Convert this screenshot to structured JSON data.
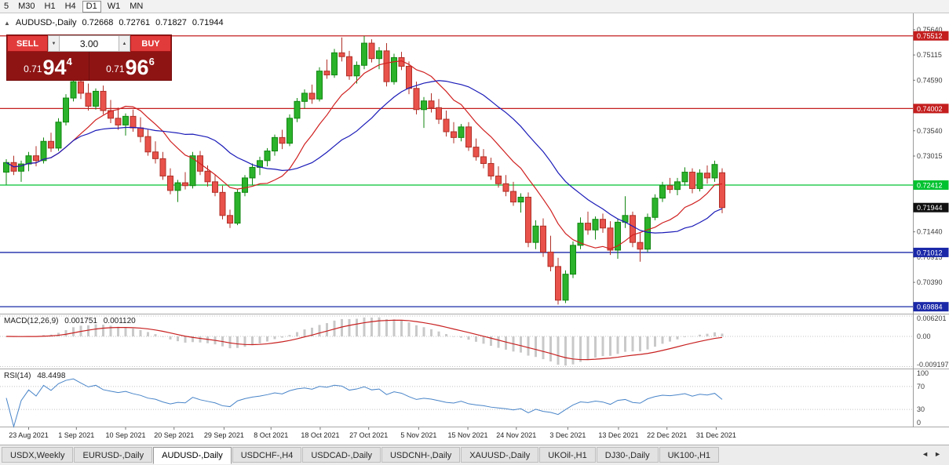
{
  "toolbar": {
    "timeframes": [
      "5",
      "M30",
      "H1",
      "H4",
      "D1",
      "W1",
      "MN"
    ],
    "selected": "D1"
  },
  "chart_header": {
    "collapse_icon": "▲",
    "symbol": "AUDUSD-,Daily",
    "open": "0.72668",
    "high": "0.72761",
    "low": "0.71827",
    "close": "0.71944"
  },
  "trade_panel": {
    "sell_label": "SELL",
    "buy_label": "BUY",
    "volume": "3.00",
    "spinner_down": "▼",
    "spinner_up": "▲",
    "sell_price": {
      "prefix": "0.71",
      "big": "94",
      "sup": "4"
    },
    "buy_price": {
      "prefix": "0.71",
      "big": "96",
      "sup": "6"
    }
  },
  "chart_data": {
    "type": "candlestick",
    "symbol": "AUDUSD-",
    "timeframe": "Daily",
    "title": "AUDUSD-,Daily 0.72668 0.72761 0.71827 0.71944",
    "ylim": [
      0.6974,
      0.7598
    ],
    "up_color": "#2bb32b",
    "up_border": "#118611",
    "down_color": "#e8524a",
    "down_border": "#b03028",
    "ma_lines": [
      {
        "name": "ma-fast-red",
        "color": "#d02020"
      },
      {
        "name": "ma-slow-blue",
        "color": "#1a1ab8"
      }
    ],
    "price_ticks": [
      {
        "v": 0.7564,
        "label": "0.75640"
      },
      {
        "v": 0.75115,
        "label": "0.75115"
      },
      {
        "v": 0.7459,
        "label": "0.74590"
      },
      {
        "v": 0.7354,
        "label": "0.73540"
      },
      {
        "v": 0.73015,
        "label": "0.73015"
      },
      {
        "v": 0.7144,
        "label": "0.71440"
      },
      {
        "v": 0.70915,
        "label": "0.70915"
      },
      {
        "v": 0.7039,
        "label": "0.70390"
      }
    ],
    "levels": [
      {
        "price": 0.75512,
        "label": "0.75512",
        "color": "#c41e1e"
      },
      {
        "price": 0.74002,
        "label": "0.74002",
        "color": "#c41e1e"
      },
      {
        "price": 0.72412,
        "label": "0.72412",
        "color": "#00c230"
      },
      {
        "price": 0.71012,
        "label": "0.71012",
        "color": "#1a28a8"
      },
      {
        "price": 0.69884,
        "label": "0.69884",
        "color": "#1a28a8"
      }
    ],
    "current_price": {
      "price": 0.71944,
      "label": "0.71944",
      "color": "#101010"
    },
    "date_labels": [
      {
        "label": "23 Aug 2021",
        "i": 3.0
      },
      {
        "label": "1 Sep 2021",
        "i": 9.4
      },
      {
        "label": "10 Sep 2021",
        "i": 16.0
      },
      {
        "label": "20 Sep 2021",
        "i": 22.5
      },
      {
        "label": "29 Sep 2021",
        "i": 29.2
      },
      {
        "label": "8 Oct 2021",
        "i": 35.5
      },
      {
        "label": "18 Oct 2021",
        "i": 42.1
      },
      {
        "label": "27 Oct 2021",
        "i": 48.6
      },
      {
        "label": "5 Nov 2021",
        "i": 55.3
      },
      {
        "label": "15 Nov 2021",
        "i": 61.9
      },
      {
        "label": "24 Nov 2021",
        "i": 68.4
      },
      {
        "label": "3 Dec 2021",
        "i": 75.3
      },
      {
        "label": "13 Dec 2021",
        "i": 82.1
      },
      {
        "label": "22 Dec 2021",
        "i": 88.6
      },
      {
        "label": "31 Dec 2021",
        "i": 95.2
      }
    ],
    "candles": [
      [
        0.7268,
        0.7295,
        0.7242,
        0.7288
      ],
      [
        0.7288,
        0.7302,
        0.7262,
        0.727
      ],
      [
        0.727,
        0.7292,
        0.7248,
        0.7285
      ],
      [
        0.7285,
        0.731,
        0.727,
        0.7302
      ],
      [
        0.7302,
        0.7322,
        0.728,
        0.7292
      ],
      [
        0.7292,
        0.734,
        0.7286,
        0.7332
      ],
      [
        0.7332,
        0.735,
        0.731,
        0.7318
      ],
      [
        0.7318,
        0.738,
        0.7312,
        0.7372
      ],
      [
        0.7372,
        0.743,
        0.7365,
        0.7422
      ],
      [
        0.7422,
        0.7478,
        0.7415,
        0.7456
      ],
      [
        0.7456,
        0.7468,
        0.742,
        0.7432
      ],
      [
        0.7432,
        0.7452,
        0.7396,
        0.7405
      ],
      [
        0.7405,
        0.7442,
        0.7398,
        0.7436
      ],
      [
        0.7436,
        0.7448,
        0.7388,
        0.7396
      ],
      [
        0.7396,
        0.7418,
        0.737,
        0.738
      ],
      [
        0.738,
        0.7402,
        0.7356,
        0.7366
      ],
      [
        0.7366,
        0.739,
        0.7344,
        0.7384
      ],
      [
        0.7384,
        0.7398,
        0.7352,
        0.736
      ],
      [
        0.736,
        0.7382,
        0.733,
        0.7342
      ],
      [
        0.7342,
        0.7356,
        0.7302,
        0.731
      ],
      [
        0.731,
        0.7332,
        0.7286,
        0.7296
      ],
      [
        0.7296,
        0.731,
        0.7252,
        0.726
      ],
      [
        0.726,
        0.7276,
        0.7222,
        0.723
      ],
      [
        0.723,
        0.7252,
        0.7206,
        0.7246
      ],
      [
        0.7246,
        0.7268,
        0.7232,
        0.724
      ],
      [
        0.724,
        0.731,
        0.7234,
        0.7302
      ],
      [
        0.7302,
        0.7312,
        0.7262,
        0.727
      ],
      [
        0.727,
        0.7282,
        0.7238,
        0.7248
      ],
      [
        0.7248,
        0.7262,
        0.7218,
        0.7226
      ],
      [
        0.7226,
        0.724,
        0.717,
        0.7178
      ],
      [
        0.7178,
        0.719,
        0.7152,
        0.7162
      ],
      [
        0.7162,
        0.7232,
        0.7158,
        0.7226
      ],
      [
        0.7226,
        0.7262,
        0.7218,
        0.7256
      ],
      [
        0.7256,
        0.7286,
        0.7242,
        0.7278
      ],
      [
        0.7278,
        0.73,
        0.7262,
        0.7292
      ],
      [
        0.7292,
        0.7318,
        0.728,
        0.7312
      ],
      [
        0.7312,
        0.7346,
        0.7302,
        0.734
      ],
      [
        0.734,
        0.7356,
        0.7316,
        0.7328
      ],
      [
        0.7328,
        0.7388,
        0.7322,
        0.738
      ],
      [
        0.738,
        0.7422,
        0.7372,
        0.7415
      ],
      [
        0.7415,
        0.744,
        0.74,
        0.7432
      ],
      [
        0.7432,
        0.745,
        0.741,
        0.742
      ],
      [
        0.742,
        0.7486,
        0.7415,
        0.7478
      ],
      [
        0.7478,
        0.7502,
        0.7462,
        0.747
      ],
      [
        0.747,
        0.7524,
        0.7464,
        0.7516
      ],
      [
        0.7516,
        0.7548,
        0.7498,
        0.7508
      ],
      [
        0.7508,
        0.752,
        0.746,
        0.7468
      ],
      [
        0.7468,
        0.7498,
        0.7452,
        0.749
      ],
      [
        0.749,
        0.7551,
        0.7482,
        0.7536
      ],
      [
        0.7536,
        0.7544,
        0.7496,
        0.7504
      ],
      [
        0.7504,
        0.7528,
        0.7482,
        0.752
      ],
      [
        0.752,
        0.7536,
        0.7446,
        0.7456
      ],
      [
        0.7456,
        0.7514,
        0.745,
        0.7506
      ],
      [
        0.7506,
        0.7518,
        0.748,
        0.7488
      ],
      [
        0.7488,
        0.7498,
        0.743,
        0.7442
      ],
      [
        0.7442,
        0.7456,
        0.7388,
        0.7398
      ],
      [
        0.7398,
        0.7424,
        0.736,
        0.7416
      ],
      [
        0.7416,
        0.7432,
        0.7392,
        0.7402
      ],
      [
        0.7402,
        0.742,
        0.7368,
        0.7378
      ],
      [
        0.7378,
        0.7396,
        0.7342,
        0.7352
      ],
      [
        0.7352,
        0.7372,
        0.7328,
        0.734
      ],
      [
        0.734,
        0.7368,
        0.7332,
        0.7362
      ],
      [
        0.7362,
        0.7372,
        0.7312,
        0.732
      ],
      [
        0.732,
        0.7338,
        0.7292,
        0.73
      ],
      [
        0.73,
        0.7316,
        0.7276,
        0.7286
      ],
      [
        0.7286,
        0.7298,
        0.7252,
        0.726
      ],
      [
        0.726,
        0.728,
        0.7236,
        0.7244
      ],
      [
        0.7244,
        0.7262,
        0.7218,
        0.7228
      ],
      [
        0.7228,
        0.7248,
        0.7198,
        0.7206
      ],
      [
        0.7206,
        0.7224,
        0.7184,
        0.7216
      ],
      [
        0.7216,
        0.7226,
        0.7112,
        0.7122
      ],
      [
        0.7122,
        0.7168,
        0.7108,
        0.7156
      ],
      [
        0.7156,
        0.7172,
        0.7092,
        0.7102
      ],
      [
        0.7102,
        0.7136,
        0.7062,
        0.7072
      ],
      [
        0.7072,
        0.709,
        0.6993,
        0.7002
      ],
      [
        0.7002,
        0.7064,
        0.6996,
        0.7056
      ],
      [
        0.7056,
        0.7124,
        0.7048,
        0.7116
      ],
      [
        0.7116,
        0.7174,
        0.7108,
        0.7162
      ],
      [
        0.7162,
        0.7186,
        0.7138,
        0.7148
      ],
      [
        0.7148,
        0.7176,
        0.7128,
        0.717
      ],
      [
        0.717,
        0.7182,
        0.7142,
        0.7152
      ],
      [
        0.7152,
        0.7166,
        0.7096,
        0.7106
      ],
      [
        0.7106,
        0.7172,
        0.7088,
        0.7164
      ],
      [
        0.7164,
        0.7218,
        0.7152,
        0.7178
      ],
      [
        0.7178,
        0.7186,
        0.7112,
        0.7122
      ],
      [
        0.7122,
        0.7142,
        0.7082,
        0.7108
      ],
      [
        0.7108,
        0.7182,
        0.7102,
        0.7174
      ],
      [
        0.7174,
        0.7222,
        0.7168,
        0.7214
      ],
      [
        0.7214,
        0.7248,
        0.7206,
        0.724
      ],
      [
        0.724,
        0.7256,
        0.7224,
        0.7232
      ],
      [
        0.7232,
        0.7256,
        0.722,
        0.7248
      ],
      [
        0.7248,
        0.7278,
        0.724,
        0.7268
      ],
      [
        0.7268,
        0.7276,
        0.7224,
        0.7234
      ],
      [
        0.7234,
        0.7274,
        0.7228,
        0.7266
      ],
      [
        0.7266,
        0.7282,
        0.7244,
        0.7256
      ],
      [
        0.7256,
        0.7292,
        0.7248,
        0.7284
      ],
      [
        0.72668,
        0.72761,
        0.71827,
        0.71944
      ]
    ]
  },
  "macd_panel": {
    "title": "MACD(12,26,9)",
    "value_main": "0.001751",
    "value_signal": "0.001120",
    "hist_color": "#c9c9c9",
    "signal_color": "#c82020",
    "axis_labels": [
      {
        "v": 0.006201,
        "label": "0.006201"
      },
      {
        "v": 0,
        "label": "0.00"
      },
      {
        "v": -0.009197,
        "label": "-0.009197"
      }
    ]
  },
  "rsi_panel": {
    "title": "RSI(14)",
    "value": "48.4498",
    "line_color": "#4884c8",
    "levels": [
      70,
      30
    ],
    "axis_labels": [
      {
        "v": 100,
        "label": "100"
      },
      {
        "v": 70,
        "label": "70"
      },
      {
        "v": 30,
        "label": "30"
      },
      {
        "v": 0,
        "label": "0"
      }
    ]
  },
  "tabs": {
    "items": [
      "USDX,Weekly",
      "EURUSD-,Daily",
      "AUDUSD-,Daily",
      "USDCHF-,H4",
      "USDCAD-,Daily",
      "USDCNH-,Daily",
      "XAUUSD-,Daily",
      "UKOil-,H1",
      "DJ30-,Daily",
      "UK100-,H1"
    ],
    "active_index": 2,
    "scroll_left_icon": "◄",
    "scroll_right_icon": "►"
  }
}
